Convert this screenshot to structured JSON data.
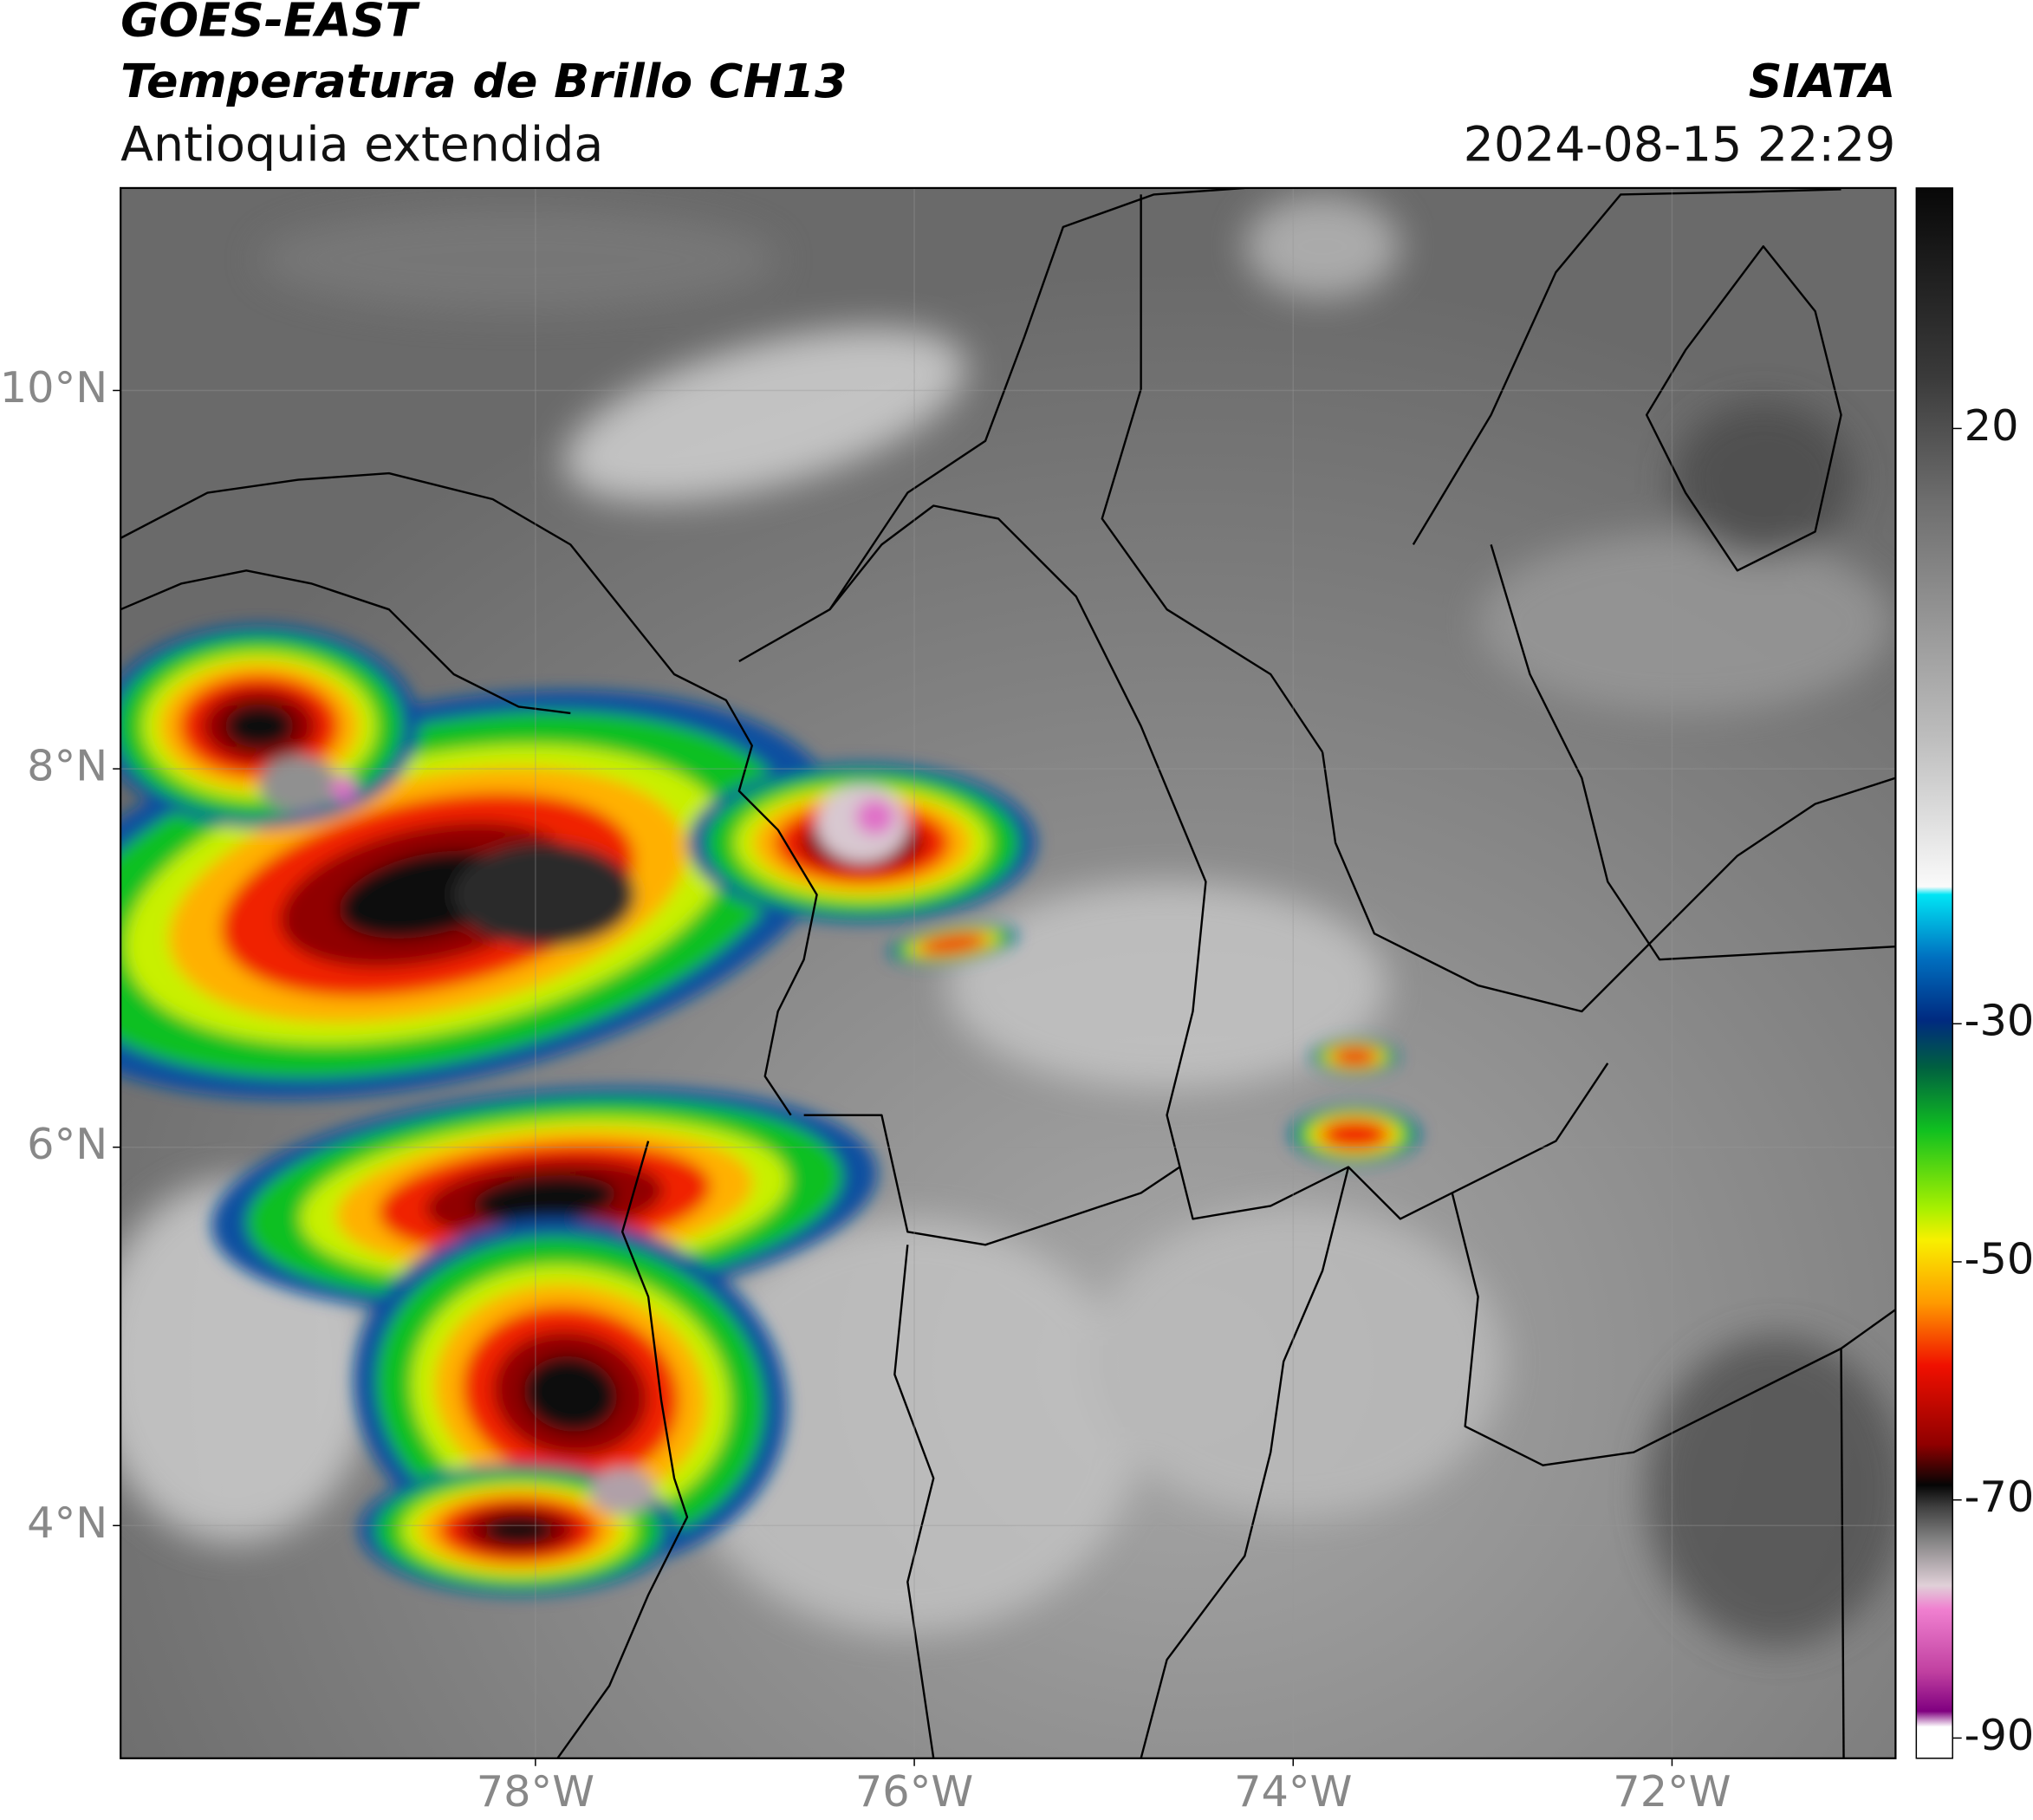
{
  "map": {
    "title": "GOES-EAST",
    "subtitle": "Temperatura de Brillo CH13",
    "region": "Antioquia extendida",
    "source": "SIATA",
    "timestamp": "2024-08-15 22:29",
    "xlim": [
      -80.19,
      -70.82
    ],
    "ylim": [
      2.77,
      11.07
    ],
    "xticks": [
      {
        "value": -78,
        "label": "78°W"
      },
      {
        "value": -76,
        "label": "76°W"
      },
      {
        "value": -74,
        "label": "74°W"
      },
      {
        "value": -72,
        "label": "72°W"
      }
    ],
    "yticks": [
      {
        "value": 10,
        "label": "10°N"
      },
      {
        "value": 8,
        "label": "8°N"
      },
      {
        "value": 6,
        "label": "6°N"
      },
      {
        "value": 4,
        "label": "4°N"
      }
    ],
    "colorbar": {
      "lim": [
        -91.7,
        40.2
      ],
      "ticks": [
        20,
        -30,
        -50,
        -70,
        -90
      ]
    }
  }
}
